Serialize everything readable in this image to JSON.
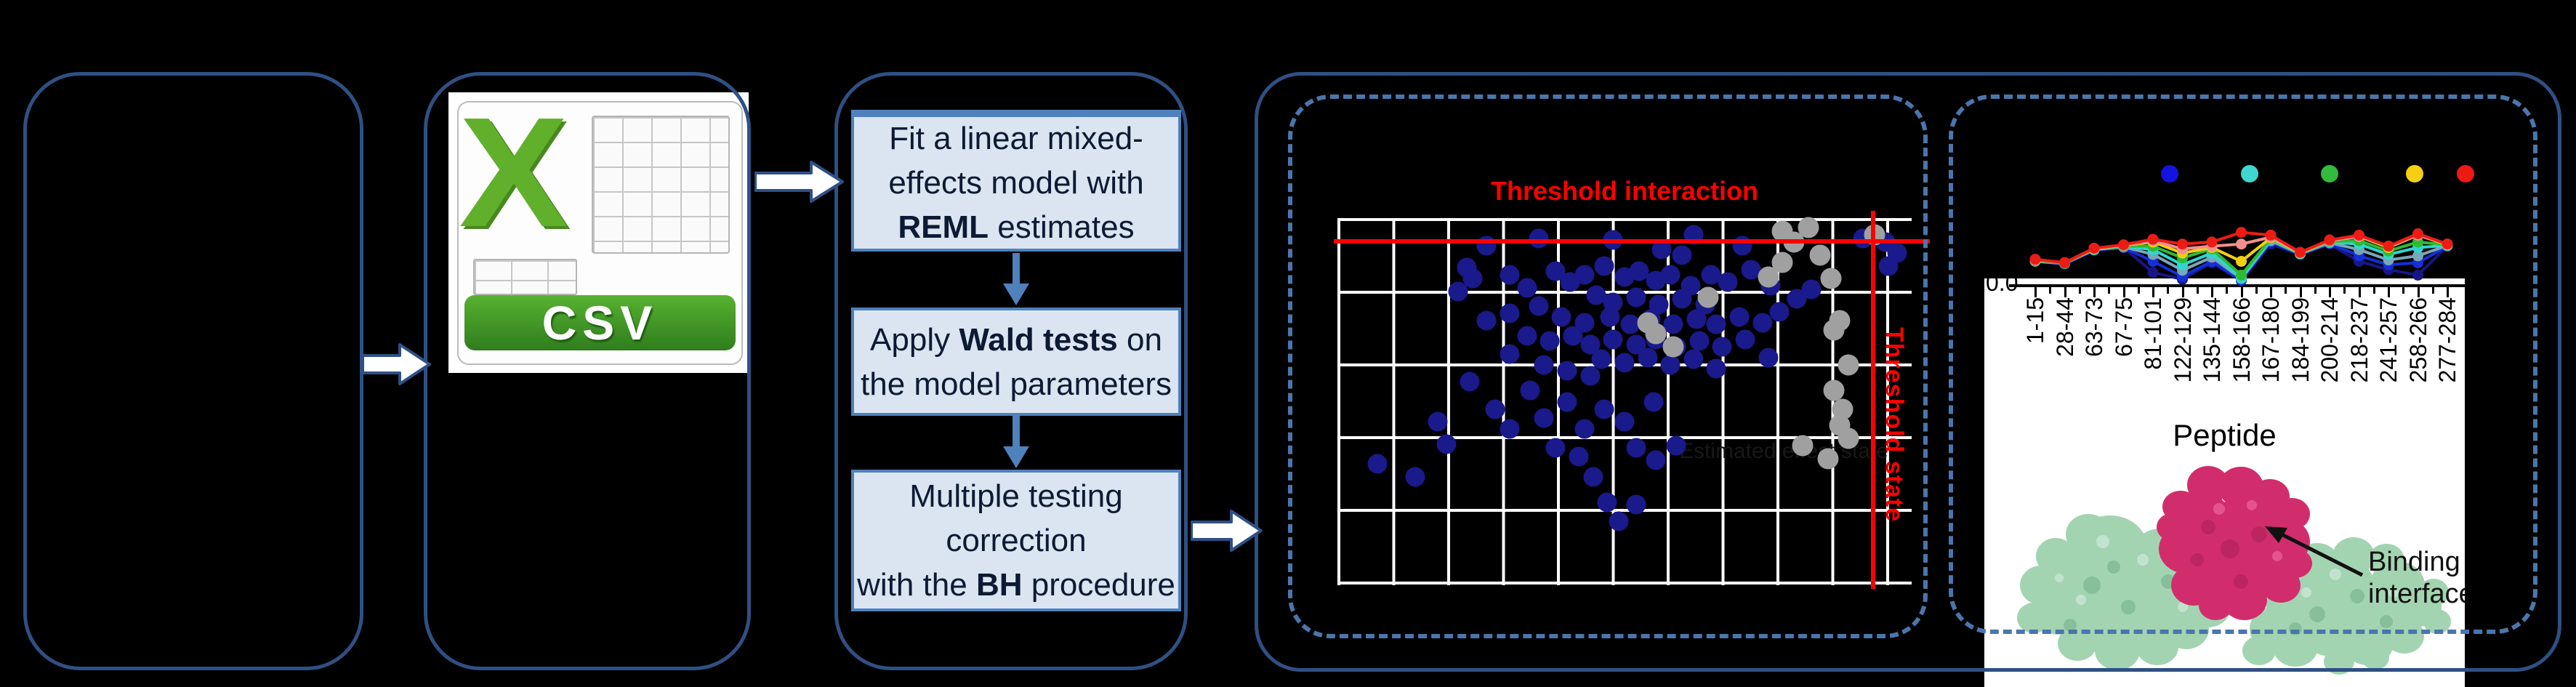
{
  "colors": {
    "panel_border": "#2e5084",
    "dashed_border": "#4a76ad",
    "box_fill": "#dbe5f1",
    "box_border": "#4f81bd",
    "threshold_red": "#ff0000",
    "scatter_blue_dot": "#1a1a8c",
    "scatter_gray_dot": "#a0a0a0",
    "protein_body_green": "#a3d4b1",
    "protein_patch_pink": "#d12d6d"
  },
  "csv": {
    "label": "CSV"
  },
  "workflow": {
    "boxes": [
      {
        "lines": [
          [
            {
              "text": "Fit a linear mixed-"
            }
          ],
          [
            {
              "text": "effects model with"
            }
          ],
          [
            {
              "text": "REML",
              "bold": true
            },
            {
              "text": " estimates"
            }
          ]
        ]
      },
      {
        "lines": [
          [
            {
              "text": "Apply "
            },
            {
              "text": "Wald tests",
              "bold": true
            },
            {
              "text": " on"
            }
          ],
          [
            {
              "text": "the model parameters"
            }
          ]
        ]
      },
      {
        "lines": [
          [
            {
              "text": "Multiple testing"
            }
          ],
          [
            {
              "text": "correction"
            }
          ],
          [
            {
              "text": "with the "
            },
            {
              "text": "BH",
              "bold": true
            },
            {
              "text": " procedure"
            }
          ]
        ]
      }
    ]
  },
  "labels": {
    "scatter_title": "Threshold interaction",
    "scatter_vline_label": "Threshold state",
    "scatter_faint_label": "Estimated effect state",
    "uptake_ytick": "0.0",
    "peptide_xlabel": "Peptide",
    "binding": "Binding interface"
  },
  "chart_data": [
    {
      "type": "scatter",
      "title": "Threshold interaction",
      "grid": true,
      "thresholds": {
        "interaction_y_frac": 0.061,
        "state_x_frac": 0.933,
        "interaction_label": "Threshold interaction",
        "state_label": "Threshold state"
      },
      "series": [
        {
          "name": "blue-points",
          "color": "#1a1a8c",
          "points_frac": [
            [
              0.26,
              0.075
            ],
            [
              0.35,
              0.055
            ],
            [
              0.48,
              0.06
            ],
            [
              0.565,
              0.085
            ],
            [
              0.62,
              0.045
            ],
            [
              0.705,
              0.075
            ],
            [
              0.915,
              0.055
            ],
            [
              0.955,
              0.065
            ],
            [
              0.975,
              0.095
            ],
            [
              0.6,
              0.1
            ],
            [
              0.96,
              0.13
            ],
            [
              0.225,
              0.135
            ],
            [
              0.235,
              0.165
            ],
            [
              0.21,
              0.2
            ],
            [
              0.3,
              0.155
            ],
            [
              0.33,
              0.19
            ],
            [
              0.38,
              0.145
            ],
            [
              0.405,
              0.175
            ],
            [
              0.43,
              0.155
            ],
            [
              0.465,
              0.13
            ],
            [
              0.5,
              0.16
            ],
            [
              0.525,
              0.145
            ],
            [
              0.555,
              0.17
            ],
            [
              0.58,
              0.155
            ],
            [
              0.615,
              0.185
            ],
            [
              0.65,
              0.155
            ],
            [
              0.68,
              0.175
            ],
            [
              0.72,
              0.14
            ],
            [
              0.755,
              0.185
            ],
            [
              0.45,
              0.21
            ],
            [
              0.48,
              0.23
            ],
            [
              0.52,
              0.215
            ],
            [
              0.56,
              0.235
            ],
            [
              0.6,
              0.22
            ],
            [
              0.64,
              0.235
            ],
            [
              0.35,
              0.24
            ],
            [
              0.3,
              0.26
            ],
            [
              0.26,
              0.28
            ],
            [
              0.39,
              0.27
            ],
            [
              0.43,
              0.285
            ],
            [
              0.475,
              0.27
            ],
            [
              0.51,
              0.29
            ],
            [
              0.545,
              0.275
            ],
            [
              0.585,
              0.29
            ],
            [
              0.625,
              0.275
            ],
            [
              0.66,
              0.29
            ],
            [
              0.7,
              0.27
            ],
            [
              0.74,
              0.285
            ],
            [
              0.77,
              0.255
            ],
            [
              0.8,
              0.22
            ],
            [
              0.825,
              0.195
            ],
            [
              0.33,
              0.32
            ],
            [
              0.37,
              0.335
            ],
            [
              0.41,
              0.32
            ],
            [
              0.44,
              0.345
            ],
            [
              0.48,
              0.33
            ],
            [
              0.52,
              0.345
            ],
            [
              0.555,
              0.33
            ],
            [
              0.59,
              0.35
            ],
            [
              0.63,
              0.335
            ],
            [
              0.67,
              0.35
            ],
            [
              0.71,
              0.33
            ],
            [
              0.46,
              0.385
            ],
            [
              0.5,
              0.395
            ],
            [
              0.54,
              0.38
            ],
            [
              0.58,
              0.4
            ],
            [
              0.62,
              0.385
            ],
            [
              0.36,
              0.4
            ],
            [
              0.4,
              0.415
            ],
            [
              0.44,
              0.43
            ],
            [
              0.66,
              0.41
            ],
            [
              0.75,
              0.38
            ],
            [
              0.3,
              0.37
            ],
            [
              0.07,
              0.67
            ],
            [
              0.135,
              0.705
            ],
            [
              0.175,
              0.555
            ],
            [
              0.19,
              0.615
            ],
            [
              0.23,
              0.445
            ],
            [
              0.275,
              0.52
            ],
            [
              0.3,
              0.575
            ],
            [
              0.335,
              0.47
            ],
            [
              0.36,
              0.545
            ],
            [
              0.4,
              0.5
            ],
            [
              0.43,
              0.575
            ],
            [
              0.465,
              0.52
            ],
            [
              0.5,
              0.555
            ],
            [
              0.52,
              0.625
            ],
            [
              0.55,
              0.5
            ],
            [
              0.555,
              0.66
            ],
            [
              0.445,
              0.705
            ],
            [
              0.47,
              0.775
            ],
            [
              0.49,
              0.825
            ],
            [
              0.52,
              0.78
            ],
            [
              0.42,
              0.65
            ],
            [
              0.38,
              0.625
            ],
            [
              0.59,
              0.62
            ]
          ]
        },
        {
          "name": "gray-points",
          "color": "#a0a0a0",
          "points_frac": [
            [
              0.54,
              0.285
            ],
            [
              0.555,
              0.315
            ],
            [
              0.585,
              0.35
            ],
            [
              0.645,
              0.215
            ],
            [
              0.75,
              0.16
            ],
            [
              0.775,
              0.12
            ],
            [
              0.775,
              0.035
            ],
            [
              0.795,
              0.065
            ],
            [
              0.82,
              0.025
            ],
            [
              0.84,
              0.1
            ],
            [
              0.86,
              0.165
            ],
            [
              0.875,
              0.28
            ],
            [
              0.865,
              0.305
            ],
            [
              0.89,
              0.4
            ],
            [
              0.865,
              0.47
            ],
            [
              0.88,
              0.52
            ],
            [
              0.875,
              0.565
            ],
            [
              0.89,
              0.6
            ],
            [
              0.855,
              0.655
            ],
            [
              0.81,
              0.62
            ],
            [
              0.935,
              0.045
            ]
          ]
        }
      ],
      "annotations": [
        "Estimated effect state"
      ]
    },
    {
      "type": "line",
      "xlabel": "Peptide",
      "ytick_label": "0.0",
      "categories": [
        "1-15",
        "28-44",
        "63-73",
        "67-75",
        "81-101",
        "122-129",
        "135-144",
        "158-166",
        "167-180",
        "184-199",
        "200-214",
        "218-237",
        "241-257",
        "258-266",
        "277-284"
      ],
      "legend_dot_colors": [
        "#1414e0",
        "#40d6d0",
        "#32bb3c",
        "#f4d010",
        "#ee1a12"
      ],
      "series": [
        {
          "name": "navy",
          "color": "#161685",
          "values": [
            0.3,
            0.26,
            0.46,
            0.5,
            0.14,
            0.04,
            0.28,
            0.02,
            0.55,
            0.4,
            0.55,
            0.3,
            0.18,
            0.1,
            0.52
          ]
        },
        {
          "name": "blue",
          "color": "#1430d8",
          "values": [
            0.3,
            0.26,
            0.46,
            0.5,
            0.3,
            0.08,
            0.3,
            0.03,
            0.58,
            0.4,
            0.56,
            0.38,
            0.25,
            0.28,
            0.52
          ]
        },
        {
          "name": "steel-blue",
          "color": "#7aa6b8",
          "values": [
            0.3,
            0.27,
            0.47,
            0.51,
            0.4,
            0.17,
            0.36,
            0.05,
            0.6,
            0.41,
            0.57,
            0.47,
            0.32,
            0.38,
            0.53
          ]
        },
        {
          "name": "cyan",
          "color": "#30d6ce",
          "values": [
            0.31,
            0.27,
            0.47,
            0.52,
            0.47,
            0.25,
            0.42,
            0.06,
            0.62,
            0.41,
            0.58,
            0.55,
            0.4,
            0.5,
            0.53
          ]
        },
        {
          "name": "green",
          "color": "#2dbb35",
          "values": [
            0.31,
            0.27,
            0.48,
            0.52,
            0.52,
            0.35,
            0.48,
            0.1,
            0.63,
            0.42,
            0.59,
            0.6,
            0.45,
            0.58,
            0.54
          ]
        },
        {
          "name": "yellow",
          "color": "#f2cf10",
          "values": [
            0.32,
            0.28,
            0.48,
            0.53,
            0.58,
            0.42,
            0.5,
            0.3,
            0.64,
            0.42,
            0.6,
            0.66,
            0.5,
            0.68,
            0.54
          ]
        },
        {
          "name": "pink",
          "color": "#f0908e",
          "values": [
            0.32,
            0.28,
            0.49,
            0.53,
            0.6,
            0.48,
            0.52,
            0.55,
            0.65,
            0.43,
            0.6,
            0.66,
            0.52,
            0.68,
            0.55
          ]
        },
        {
          "name": "red",
          "color": "#ec1c15",
          "values": [
            0.33,
            0.28,
            0.49,
            0.54,
            0.62,
            0.55,
            0.58,
            0.72,
            0.68,
            0.43,
            0.61,
            0.68,
            0.52,
            0.7,
            0.55
          ]
        }
      ]
    }
  ]
}
